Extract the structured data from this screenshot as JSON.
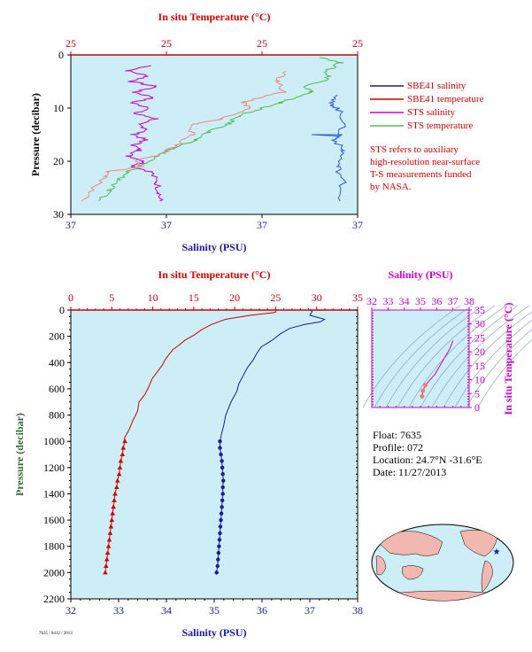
{
  "chart_data": [
    {
      "type": "line",
      "top_axis": {
        "title": "In situ Temperature (°C)",
        "ticks": [
          "25",
          "25",
          "25",
          "25"
        ]
      },
      "bottom_axis": {
        "title": "Salinity (PSU)",
        "ticks": [
          "37",
          "37",
          "37",
          "37"
        ]
      },
      "left_axis": {
        "title": "Pressure (decibar)",
        "ticks": [
          "0",
          "10",
          "20",
          "30"
        ],
        "range": [
          0,
          30
        ]
      },
      "legend": {
        "placement": "right",
        "items": [
          {
            "label": "SBE41 salinity",
            "color": "#1a1aa6"
          },
          {
            "label": "SBE41 temperature",
            "color": "#d00000"
          },
          {
            "label": "STS salinity",
            "color": "#cc00cc"
          },
          {
            "label": "STS temperature",
            "color": "#55bb55"
          }
        ],
        "note": [
          "STS refers to auxiliary",
          "high-resolution near-surface",
          "T-S measurements funded",
          "by NASA."
        ]
      },
      "series": [
        {
          "name": "STS salinity",
          "color": "#cc00cc",
          "points": [
            [
              0.28,
              2
            ],
            [
              0.2,
              3
            ],
            [
              0.27,
              4
            ],
            [
              0.21,
              5
            ],
            [
              0.3,
              6
            ],
            [
              0.22,
              7
            ],
            [
              0.29,
              8
            ],
            [
              0.21,
              9
            ],
            [
              0.28,
              10
            ],
            [
              0.22,
              11
            ],
            [
              0.3,
              12
            ],
            [
              0.23,
              13
            ],
            [
              0.27,
              14
            ],
            [
              0.22,
              15
            ],
            [
              0.26,
              16
            ],
            [
              0.22,
              17
            ],
            [
              0.24,
              18
            ],
            [
              0.2,
              19
            ],
            [
              0.26,
              20
            ],
            [
              0.22,
              21
            ],
            [
              0.28,
              22
            ],
            [
              0.3,
              24
            ],
            [
              0.31,
              26
            ],
            [
              0.31,
              27.5
            ]
          ]
        },
        {
          "name": "STS temperature",
          "color": "#55bb55",
          "points": [
            [
              0.88,
              0.5
            ],
            [
              0.94,
              1.5
            ],
            [
              0.89,
              3
            ],
            [
              0.9,
              4.5
            ],
            [
              0.82,
              6
            ],
            [
              0.84,
              7
            ],
            [
              0.78,
              8
            ],
            [
              0.73,
              9
            ],
            [
              0.67,
              10
            ],
            [
              0.58,
              11.5
            ],
            [
              0.55,
              13
            ],
            [
              0.48,
              14.5
            ],
            [
              0.43,
              16
            ],
            [
              0.36,
              17.5
            ],
            [
              0.32,
              18.5
            ],
            [
              0.27,
              20
            ],
            [
              0.2,
              22
            ],
            [
              0.17,
              23.5
            ],
            [
              0.13,
              25.5
            ],
            [
              0.1,
              27.5
            ]
          ]
        },
        {
          "name": "SBE41 temperature",
          "color": "#ee8888",
          "points": [
            [
              0.75,
              3
            ],
            [
              0.72,
              5
            ],
            [
              0.74,
              7
            ],
            [
              0.66,
              8
            ],
            [
              0.6,
              9
            ],
            [
              0.62,
              10
            ],
            [
              0.53,
              12
            ],
            [
              0.43,
              13
            ],
            [
              0.42,
              15
            ],
            [
              0.37,
              17
            ],
            [
              0.3,
              19
            ],
            [
              0.22,
              20
            ],
            [
              0.25,
              21
            ],
            [
              0.12,
              22
            ],
            [
              0.12,
              23
            ],
            [
              0.08,
              25
            ],
            [
              0.04,
              27.5
            ]
          ]
        },
        {
          "name": "SBE41 salinity",
          "color": "#3355dd",
          "points": [
            [
              0.94,
              7.5
            ],
            [
              0.9,
              9
            ],
            [
              0.93,
              10
            ],
            [
              0.95,
              12
            ],
            [
              0.94,
              15
            ],
            [
              0.92,
              16
            ],
            [
              0.95,
              18
            ],
            [
              0.93,
              21
            ],
            [
              0.95,
              24
            ],
            [
              0.94,
              27.5
            ]
          ]
        }
      ]
    },
    {
      "type": "line",
      "top_axis": {
        "title": "In situ Temperature (°C)",
        "ticks": [
          "0",
          "5",
          "10",
          "15",
          "20",
          "25",
          "30",
          "35"
        ],
        "range": [
          0,
          35
        ]
      },
      "bottom_axis": {
        "title": "Salinity (PSU)",
        "ticks": [
          "32",
          "33",
          "34",
          "35",
          "36",
          "37",
          "38"
        ],
        "range": [
          32,
          38
        ]
      },
      "left_axis": {
        "title": "Pressure (decibar)",
        "ticks": [
          "0",
          "200",
          "400",
          "600",
          "800",
          "1000",
          "1200",
          "1400",
          "1600",
          "1800",
          "2000",
          "2200"
        ],
        "range": [
          0,
          2200
        ]
      },
      "series": [
        {
          "name": "Temperature",
          "color": "#d00000",
          "points": [
            [
              25,
              0
            ],
            [
              25,
              15
            ],
            [
              24.7,
              20
            ],
            [
              22,
              40
            ],
            [
              19,
              70
            ],
            [
              17,
              110
            ],
            [
              16,
              150
            ],
            [
              15,
              190
            ],
            [
              14,
              230
            ],
            [
              13,
              270
            ],
            [
              12.5,
              300
            ],
            [
              12,
              340
            ],
            [
              11.5,
              380
            ],
            [
              11,
              420
            ],
            [
              10.5,
              470
            ],
            [
              10,
              520
            ],
            [
              9.5,
              580
            ],
            [
              9,
              640
            ],
            [
              8.5,
              700
            ],
            [
              8,
              770
            ],
            [
              7.5,
              840
            ],
            [
              7,
              910
            ],
            [
              6.7,
              970
            ],
            [
              6.6,
              1000
            ]
          ],
          "markers": [
            [
              6.6,
              1000
            ],
            [
              6.4,
              1050
            ],
            [
              6.3,
              1100
            ],
            [
              6.1,
              1150
            ],
            [
              6.0,
              1200
            ],
            [
              5.9,
              1250
            ],
            [
              5.7,
              1300
            ],
            [
              5.6,
              1350
            ],
            [
              5.4,
              1400
            ],
            [
              5.3,
              1450
            ],
            [
              5.2,
              1500
            ],
            [
              5.1,
              1550
            ],
            [
              5.0,
              1600
            ],
            [
              4.9,
              1650
            ],
            [
              4.8,
              1700
            ],
            [
              4.7,
              1750
            ],
            [
              4.6,
              1800
            ],
            [
              4.5,
              1850
            ],
            [
              4.4,
              1900
            ],
            [
              4.3,
              1950
            ],
            [
              4.2,
              2000
            ]
          ]
        },
        {
          "name": "Salinity",
          "color": "#1a1aa6",
          "points": [
            [
              37.0,
              0
            ],
            [
              37.05,
              10
            ],
            [
              37.0,
              40
            ],
            [
              37.3,
              70
            ],
            [
              37.2,
              90
            ],
            [
              36.9,
              110
            ],
            [
              36.6,
              140
            ],
            [
              36.4,
              180
            ],
            [
              36.2,
              230
            ],
            [
              36.0,
              280
            ],
            [
              35.9,
              330
            ],
            [
              35.8,
              380
            ],
            [
              35.7,
              440
            ],
            [
              35.6,
              500
            ],
            [
              35.5,
              560
            ],
            [
              35.45,
              620
            ],
            [
              35.35,
              700
            ],
            [
              35.25,
              800
            ],
            [
              35.2,
              880
            ],
            [
              35.15,
              950
            ],
            [
              35.12,
              1000
            ]
          ],
          "markers": [
            [
              35.12,
              1000
            ],
            [
              35.12,
              1050
            ],
            [
              35.14,
              1100
            ],
            [
              35.16,
              1150
            ],
            [
              35.17,
              1200
            ],
            [
              35.18,
              1250
            ],
            [
              35.19,
              1300
            ],
            [
              35.18,
              1350
            ],
            [
              35.18,
              1400
            ],
            [
              35.17,
              1450
            ],
            [
              35.16,
              1500
            ],
            [
              35.15,
              1550
            ],
            [
              35.14,
              1600
            ],
            [
              35.13,
              1650
            ],
            [
              35.12,
              1700
            ],
            [
              35.11,
              1750
            ],
            [
              35.1,
              1800
            ],
            [
              35.09,
              1850
            ],
            [
              35.08,
              1900
            ],
            [
              35.07,
              1950
            ],
            [
              35.05,
              2000
            ]
          ]
        }
      ]
    },
    {
      "type": "scatter",
      "top_axis": {
        "title": "Salinity (PSU)",
        "ticks": [
          "32",
          "33",
          "34",
          "35",
          "36",
          "37",
          "38"
        ],
        "range": [
          32,
          38
        ]
      },
      "right_axis": {
        "title": "In situ Temperature (°C)",
        "ticks": [
          "0",
          "5",
          "10",
          "15",
          "20",
          "25",
          "30",
          "35"
        ],
        "range": [
          0,
          35
        ]
      },
      "points": [
        [
          35.1,
          4
        ],
        [
          35.15,
          6
        ],
        [
          35.3,
          8
        ],
        [
          35.6,
          10
        ],
        [
          35.9,
          12
        ],
        [
          36.2,
          15
        ],
        [
          36.5,
          18
        ],
        [
          36.8,
          21
        ],
        [
          37.0,
          24
        ]
      ]
    }
  ],
  "float_info": {
    "float": "Float:  7635",
    "profile": "Profile:  072",
    "location": "Location:  24.7°N  -31.6°E",
    "date": "Date:  11/27/2013"
  },
  "footer_code": "7635 / 0412 / 2013"
}
